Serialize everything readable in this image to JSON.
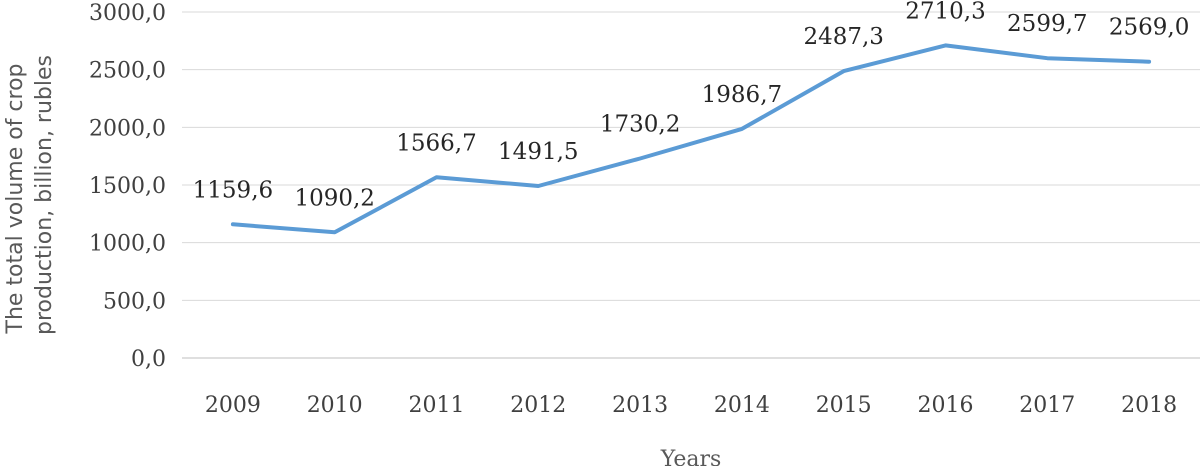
{
  "chart_data": {
    "type": "line",
    "title": "",
    "xlabel": "Years",
    "ylabel_lines": [
      "The total volume of crop",
      "production, billion, rubles"
    ],
    "categories": [
      "2009",
      "2010",
      "2011",
      "2012",
      "2013",
      "2014",
      "2015",
      "2016",
      "2017",
      "2018"
    ],
    "series": [
      {
        "values": [
          1159.6,
          1090.2,
          1566.7,
          1491.5,
          1730.2,
          1986.7,
          2487.3,
          2710.3,
          2599.7,
          2569.0
        ],
        "labels": [
          "1159,6",
          "1090,2",
          "1566,7",
          "1491,5",
          "1730,2",
          "1986,7",
          "2487,3",
          "2710,3",
          "2599,7",
          "2569,0"
        ],
        "color": "#5b9bd5"
      }
    ],
    "ylim": [
      0,
      3000
    ],
    "yticks": [
      0,
      500,
      1000,
      1500,
      2000,
      2500,
      3000
    ],
    "ytick_labels": [
      "0,0",
      "500,0",
      "1000,0",
      "1500,0",
      "2000,0",
      "2500,0",
      "3000,0"
    ],
    "grid": true,
    "legend": "none"
  }
}
